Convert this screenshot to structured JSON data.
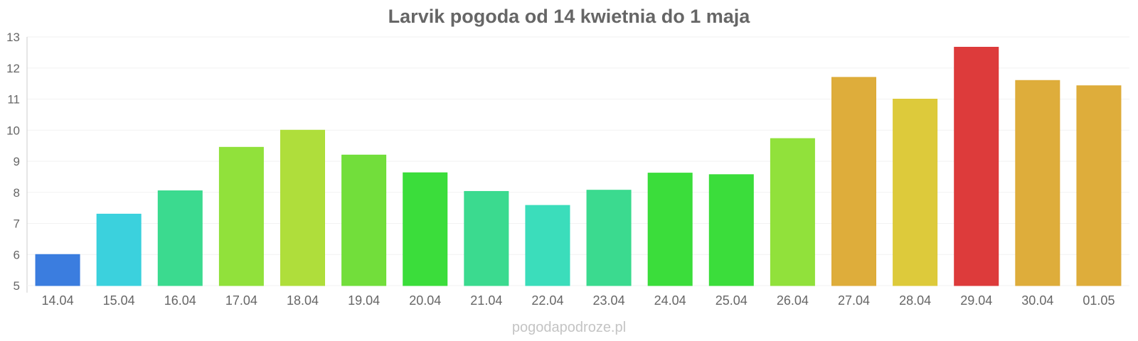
{
  "chart_data": {
    "type": "bar",
    "title": "Larvik pogoda od 14 kwietnia do 1 maja",
    "xlabel": "",
    "ylabel": "",
    "categories": [
      "14.04",
      "15.04",
      "16.04",
      "17.04",
      "18.04",
      "19.04",
      "20.04",
      "21.04",
      "22.04",
      "23.04",
      "24.04",
      "25.04",
      "26.04",
      "27.04",
      "28.04",
      "29.04",
      "30.04",
      "01.05"
    ],
    "values": [
      6.0,
      7.3,
      8.05,
      9.45,
      10.0,
      9.2,
      8.63,
      8.03,
      7.58,
      8.07,
      8.62,
      8.57,
      9.73,
      11.7,
      11.0,
      12.67,
      11.6,
      11.43
    ],
    "colors": [
      "#3579de",
      "#35d0dc",
      "#35d98b",
      "#8de035",
      "#acdd35",
      "#6ddd35",
      "#35dc35",
      "#35d98b",
      "#35dcb9",
      "#35d98b",
      "#35dc35",
      "#35dc35",
      "#8de035",
      "#ddaa35",
      "#dcc835",
      "#dc3535",
      "#ddaa35",
      "#ddaa35"
    ],
    "ylim": [
      5,
      13
    ],
    "yticks": [
      5,
      6,
      7,
      8,
      9,
      10,
      11,
      12,
      13
    ],
    "grid": true,
    "legend": "none"
  },
  "watermark": "pogodapodroze.pl"
}
